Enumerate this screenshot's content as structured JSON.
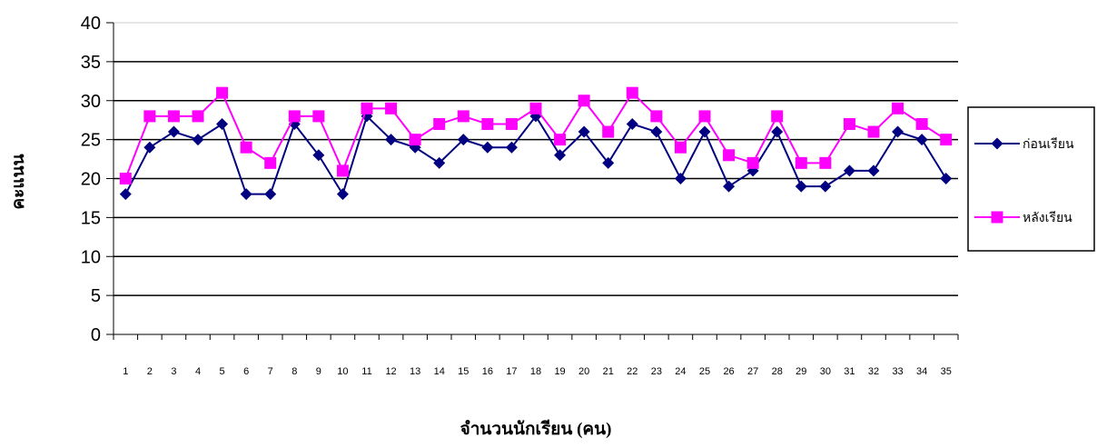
{
  "chart_data": {
    "type": "line",
    "title": "",
    "xlabel": "จำนวนนักเรียน (คน)",
    "ylabel": "คะแนน",
    "ylim": [
      0,
      40
    ],
    "yticks": [
      0,
      5,
      10,
      15,
      20,
      25,
      30,
      35,
      40
    ],
    "grid": true,
    "legend_position": "right",
    "categories": [
      "1",
      "2",
      "3",
      "4",
      "5",
      "6",
      "7",
      "8",
      "9",
      "10",
      "11",
      "12",
      "13",
      "14",
      "15",
      "16",
      "17",
      "18",
      "19",
      "20",
      "21",
      "22",
      "23",
      "24",
      "25",
      "26",
      "27",
      "28",
      "29",
      "30",
      "31",
      "32",
      "33",
      "34",
      "35"
    ],
    "series": [
      {
        "name": "ก่อนเรียน",
        "color": "#000080",
        "marker": "diamond",
        "values": [
          18,
          24,
          26,
          25,
          27,
          18,
          18,
          27,
          23,
          18,
          28,
          25,
          24,
          22,
          25,
          24,
          24,
          28,
          23,
          26,
          22,
          27,
          26,
          20,
          26,
          19,
          21,
          26,
          19,
          19,
          21,
          21,
          26,
          25,
          20
        ]
      },
      {
        "name": "หลังเรียน",
        "color": "#ff00ff",
        "marker": "square",
        "values": [
          20,
          28,
          28,
          28,
          31,
          24,
          22,
          28,
          28,
          21,
          29,
          29,
          25,
          27,
          28,
          27,
          27,
          29,
          25,
          30,
          26,
          31,
          28,
          24,
          28,
          23,
          22,
          28,
          22,
          22,
          27,
          26,
          29,
          27,
          25
        ]
      }
    ]
  }
}
